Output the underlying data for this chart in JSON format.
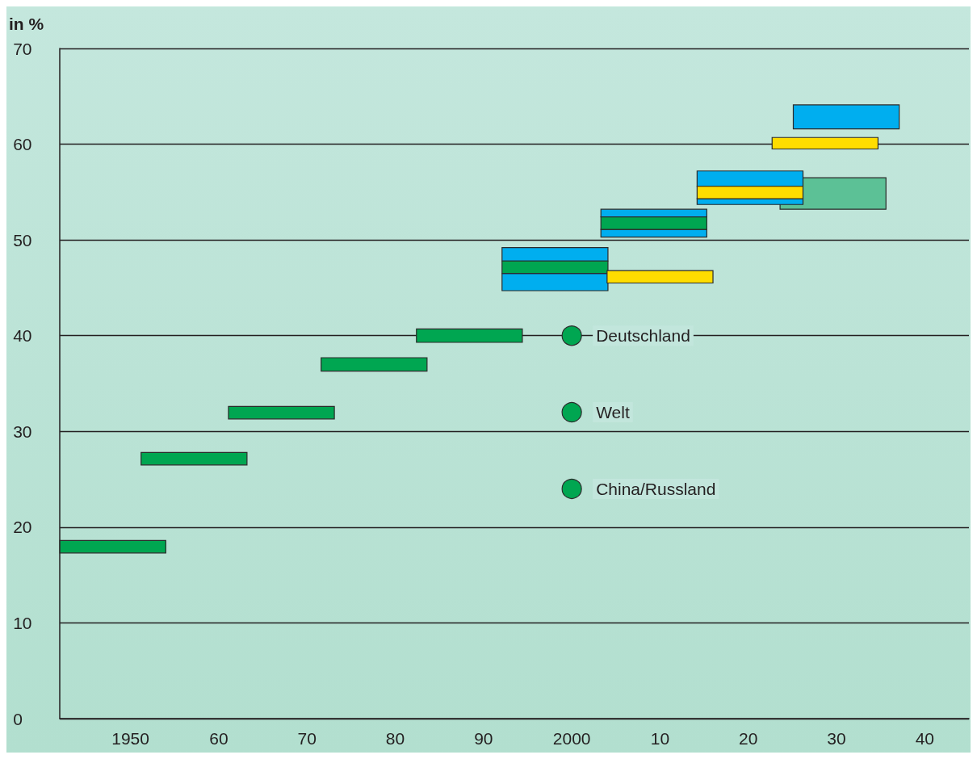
{
  "chart_data": {
    "type": "bar",
    "ylabel": "in %",
    "xlim": [
      1942,
      2045
    ],
    "ylim": [
      0,
      70
    ],
    "xticks": [
      1950,
      {
        "value": 1960,
        "label": "60"
      },
      {
        "value": 1970,
        "label": "70"
      },
      {
        "value": 1980,
        "label": "80"
      },
      {
        "value": 1990,
        "label": "90"
      },
      2000,
      {
        "value": 2010,
        "label": "10"
      },
      {
        "value": 2020,
        "label": "20"
      },
      {
        "value": 2030,
        "label": "30"
      },
      {
        "value": 2040,
        "label": "40"
      }
    ],
    "yticks": [
      0,
      10,
      20,
      30,
      40,
      50,
      60,
      70
    ],
    "grid": "y",
    "series": [
      {
        "color": "#00a651",
        "x": [
          1948,
          1957.2,
          1967.1,
          1977.6,
          1988.4
        ],
        "base": [
          17.3,
          26.5,
          31.3,
          36.3,
          39.3
        ],
        "values": [
          1.3,
          1.3,
          1.3,
          1.4,
          1.4
        ]
      },
      {
        "color": "#5cc196",
        "x": [
          2029.6
        ],
        "base": [
          53.2
        ],
        "values": [
          3.3
        ]
      },
      {
        "color": "#00aeef",
        "x": [
          1998.1,
          2009.3,
          2020.2,
          2031.1
        ],
        "base": [
          47.8,
          52.4,
          55.6,
          61.6
        ],
        "values": [
          1.4,
          0.8,
          1.6,
          2.5
        ]
      },
      {
        "color": "#00aeef",
        "x": [
          1998.1,
          2009.3,
          2020.2
        ],
        "base": [
          44.7,
          50.3,
          53.7
        ],
        "values": [
          1.8,
          0.8,
          0.6
        ]
      },
      {
        "color": "#00a651",
        "x": [
          1998.1,
          2009.3
        ],
        "base": [
          46.5,
          51.1
        ],
        "values": [
          1.3,
          1.3
        ]
      },
      {
        "color": "#ffdd00",
        "x": [
          2010,
          2020.2,
          2028.7
        ],
        "base": [
          45.5,
          54.3,
          59.5
        ],
        "values": [
          1.3,
          1.3,
          1.2
        ]
      },
      {
        "type": "scatter",
        "marker": "circle",
        "color": "#00a651",
        "x": [
          2000,
          2000,
          2000
        ],
        "values": [
          40,
          32,
          24
        ]
      }
    ],
    "annotations": [
      "Deutschland",
      "Welt",
      "China/Russland"
    ]
  }
}
